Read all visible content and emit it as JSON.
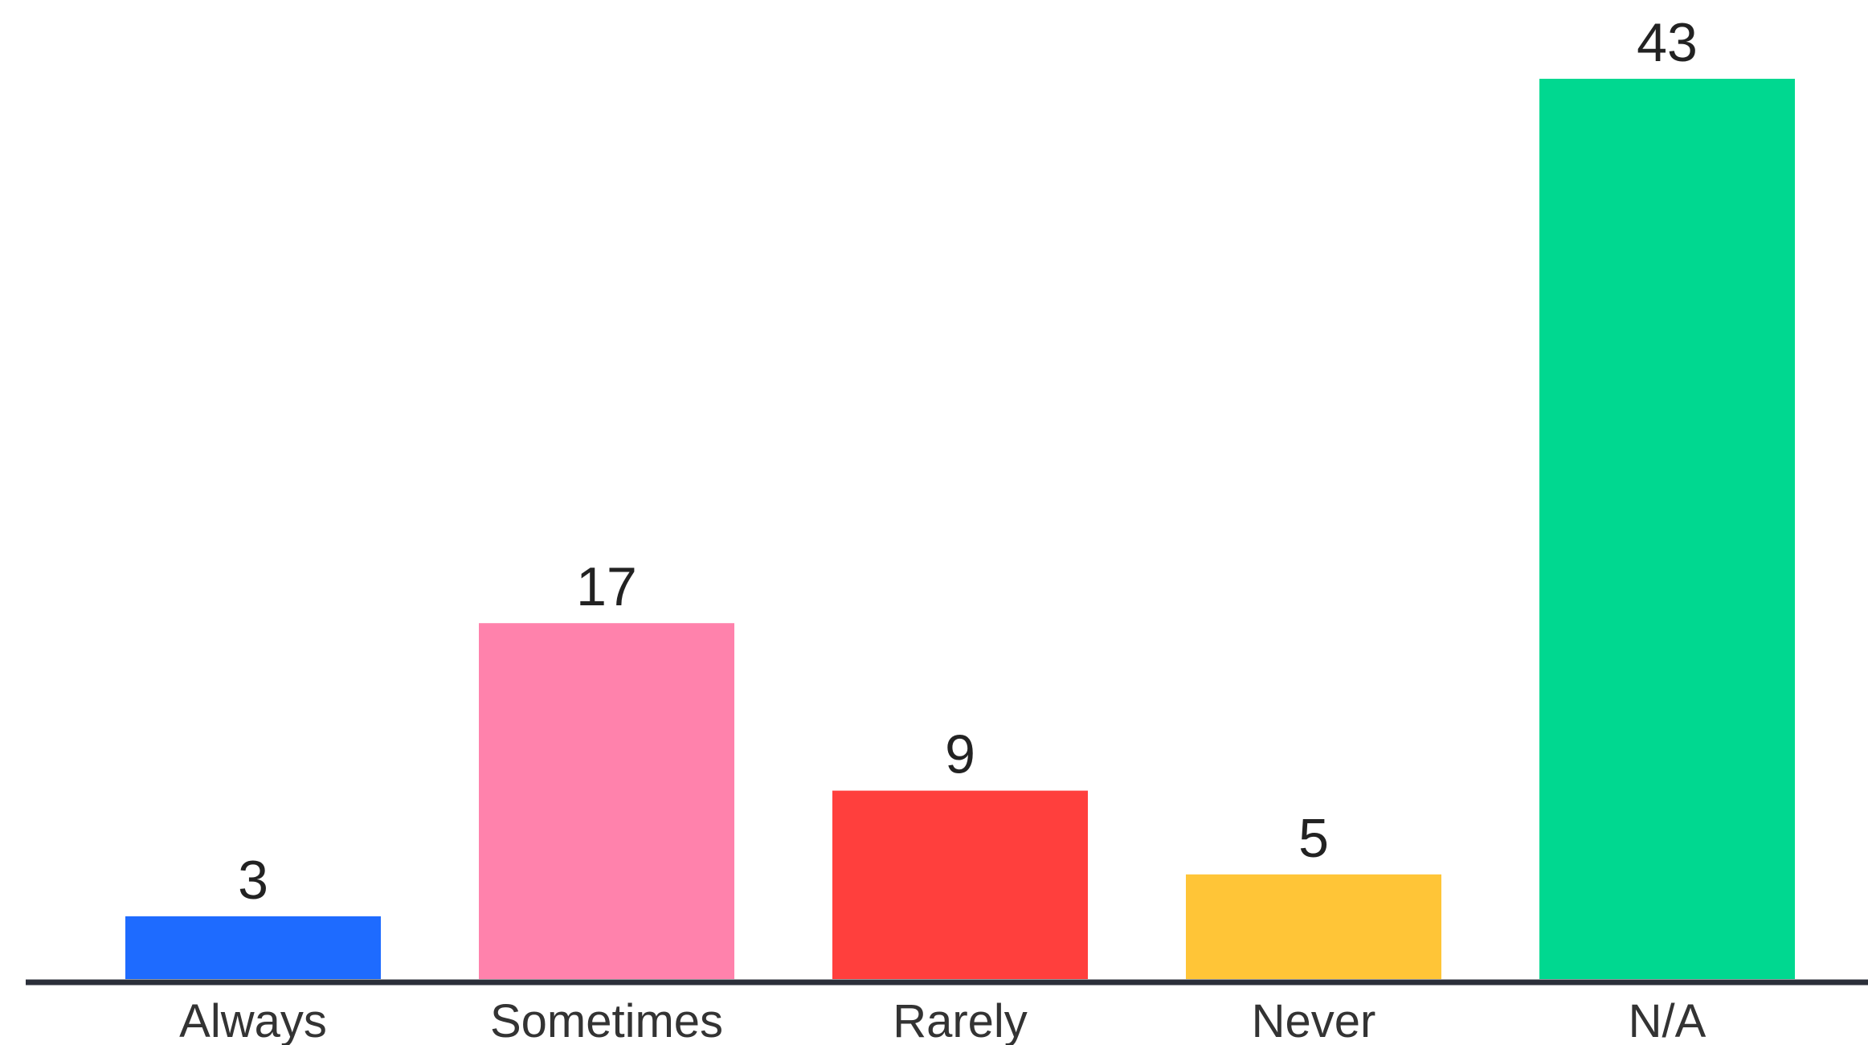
{
  "chart_data": {
    "type": "bar",
    "title": "",
    "xlabel": "",
    "ylabel": "",
    "categories": [
      "Always",
      "Sometimes",
      "Rarely",
      "Never",
      "N/A"
    ],
    "values": [
      3,
      17,
      9,
      5,
      43
    ],
    "colors": [
      "#1E6BFF",
      "#FF82AC",
      "#FF3F3D",
      "#FFC537",
      "#00D890"
    ],
    "axis_color": "#2B2F3A",
    "ylim": [
      0,
      44
    ],
    "grid": false,
    "legend": "none",
    "data_labels": true
  }
}
